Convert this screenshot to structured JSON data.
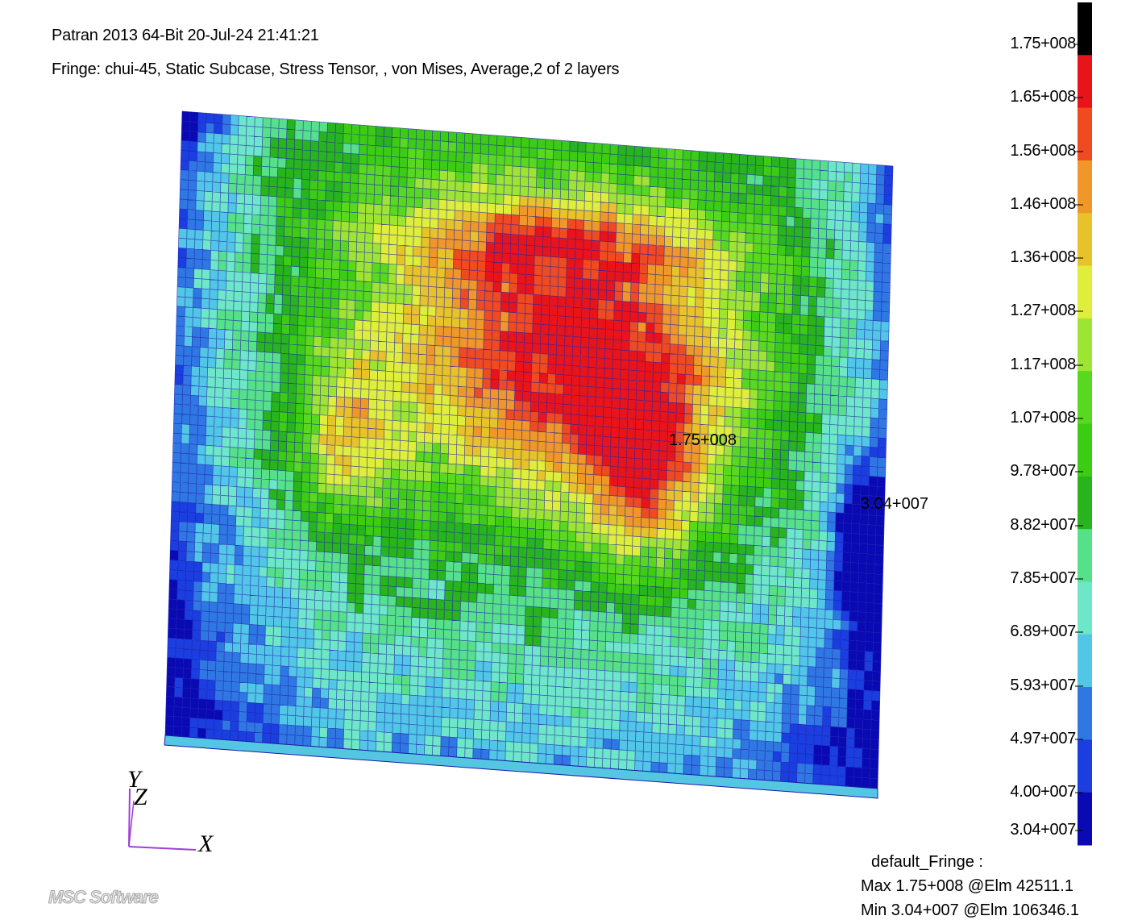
{
  "header": {
    "title": "Patran 2013 64-Bit 20-Jul-24 21:41:21",
    "fringe": "Fringe: chui-45, Static Subcase, Stress Tensor, , von Mises, Average,2 of 2 layers"
  },
  "legend": {
    "labels": [
      "1.75+008",
      "1.65+008",
      "1.56+008",
      "1.46+008",
      "1.36+008",
      "1.27+008",
      "1.17+008",
      "1.07+008",
      "9.78+007",
      "8.82+007",
      "7.85+007",
      "6.89+007",
      "5.93+007",
      "4.97+007",
      "4.00+007",
      "3.04+007"
    ],
    "colors": [
      "#000000",
      "#e8141a",
      "#ef4a20",
      "#ef9728",
      "#e8c22a",
      "#dfee3a",
      "#9ee432",
      "#58d81e",
      "#3ccc14",
      "#28b41c",
      "#56e08a",
      "#6ee6c8",
      "#52c6e6",
      "#2f78e4",
      "#1a3ee0",
      "#0a0ab4"
    ]
  },
  "annotations": {
    "max_marker": "1.75+008",
    "min_marker": "3.04+007"
  },
  "summary": {
    "title": "default_Fringe :",
    "max": "Max 1.75+008 @Elm 42511.1",
    "min": "Min 3.04+007 @Elm 106346.1"
  },
  "axes": {
    "y": "Y",
    "z": "Z",
    "x": "X"
  },
  "logo": "MSC Software",
  "colors": {
    "mesh_line": "#1a1aa8",
    "axis": "#a040d8",
    "background": "#ffffff"
  }
}
